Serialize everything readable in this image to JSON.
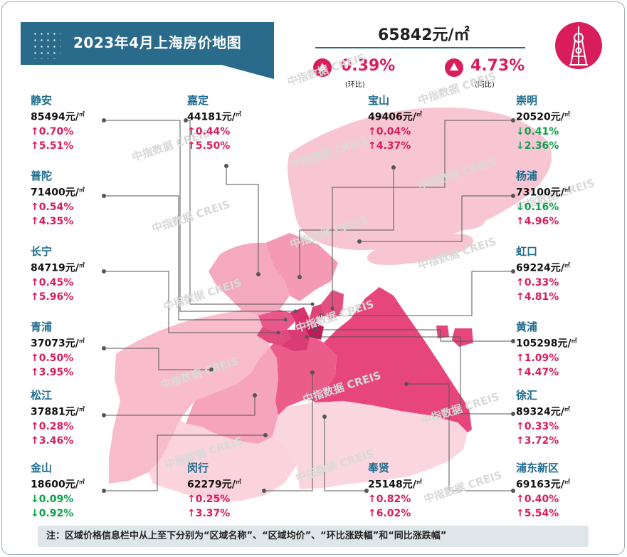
{
  "title": "2023年4月上海房价地图",
  "summary": {
    "avg_price": "65842元/㎡",
    "mom_value": "0.39%",
    "mom_label": "(环比)",
    "yoy_value": "4.73%",
    "yoy_label": "(同比)"
  },
  "watermark": "中指数据 CREIS",
  "districts": [
    {
      "name": "静安",
      "price": "85494元/",
      "mom": "↑0.70%",
      "yoy": "↑5.51%"
    },
    {
      "name": "普陀",
      "price": "71400元/",
      "mom": "↑0.54%",
      "yoy": "↑4.35%"
    },
    {
      "name": "长宁",
      "price": "84719元/",
      "mom": "↑0.45%",
      "yoy": "↑5.96%"
    },
    {
      "name": "青浦",
      "price": "37073元/",
      "mom": "↑0.50%",
      "yoy": "↑3.95%"
    },
    {
      "name": "松江",
      "price": "37881元/",
      "mom": "↑0.28%",
      "yoy": "↑3.46%"
    },
    {
      "name": "金山",
      "price": "18600元/",
      "mom": "↓0.09%",
      "yoy": "↓0.92%"
    },
    {
      "name": "嘉定",
      "price": "44181元/",
      "mom": "↑0.44%",
      "yoy": "↑5.50%"
    },
    {
      "name": "闵行",
      "price": "62279元/",
      "mom": "↑0.25%",
      "yoy": "↑3.37%"
    },
    {
      "name": "宝山",
      "price": "49406元/",
      "mom": "↑0.04%",
      "yoy": "↑4.37%"
    },
    {
      "name": "奉贤",
      "price": "25148元/",
      "mom": "↑0.82%",
      "yoy": "↑6.02%"
    },
    {
      "name": "崇明",
      "price": "20520元/",
      "mom": "↓0.41%",
      "yoy": "↓2.36%"
    },
    {
      "name": "杨浦",
      "price": "73100元/",
      "mom": "↓0.16%",
      "yoy": "↑4.96%"
    },
    {
      "name": "虹口",
      "price": "69224元/",
      "mom": "↑0.33%",
      "yoy": "↑4.81%"
    },
    {
      "name": "黄浦",
      "price": "105298元/",
      "mom": "↑1.09%",
      "yoy": "↑4.47%"
    },
    {
      "name": "徐汇",
      "price": "89324元/",
      "mom": "↑0.33%",
      "yoy": "↑3.72%"
    },
    {
      "name": "浦东新区",
      "price": "69163元/",
      "mom": "↑0.40%",
      "yoy": "↑5.54%"
    }
  ],
  "unit_sup": "㎡",
  "note": "注：区域价格信息栏中从上至下分别为“区域名称”、“区域均价”、“环比涨跌幅”和“同比涨跌幅”",
  "colors": {
    "accent": "#d91d5c",
    "header": "#2a6a8a",
    "up": "#d91d5c",
    "down": "#0aa14a",
    "name": "#1f6b8f"
  }
}
